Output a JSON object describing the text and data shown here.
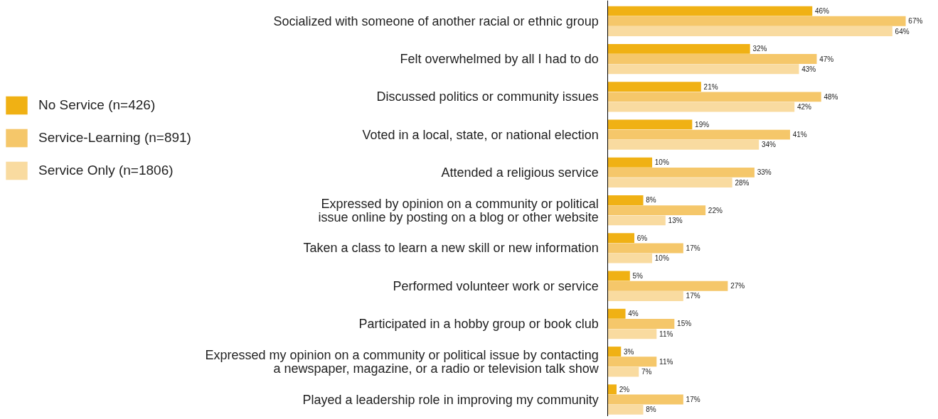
{
  "chart_data": {
    "type": "bar",
    "orientation": "horizontal",
    "categories": [
      "Socialized with someone of another racial or ethnic group",
      "Felt overwhelmed by all I had to do",
      "Discussed politics or community issues",
      "Voted in a local, state, or national election",
      "Attended a religious service",
      "Expressed by opinion on a community or political\nissue online by posting on a blog or other website",
      "Taken a class to learn a new skill or new information",
      "Performed volunteer work or service",
      "Participated in a hobby group or book club",
      "Expressed my opinion on a community or political issue by contacting\na newspaper, magazine, or a radio or television talk show",
      "Played a leadership role in improving my community"
    ],
    "series": [
      {
        "name": "No Service (n=426)",
        "color": "#f0b114",
        "values": [
          46,
          32,
          21,
          19,
          10,
          8,
          6,
          5,
          4,
          3,
          2
        ],
        "value_labels": [
          "46%",
          "32%",
          "21%",
          "19%",
          "10%",
          "8%",
          "6%",
          "5%",
          "4%",
          "3%",
          "2%"
        ]
      },
      {
        "name": "Service-Learning (n=891)",
        "color": "#f5c76a",
        "values": [
          67,
          47,
          48,
          41,
          33,
          22,
          17,
          27,
          15,
          11,
          17
        ],
        "value_labels": [
          "67%",
          "47%",
          "48%",
          "41%",
          "33%",
          "22%",
          "17%",
          "27%",
          "15%",
          "11%",
          "17%"
        ]
      },
      {
        "name": "Service Only (n=1806)",
        "color": "#f9dba0",
        "values": [
          64,
          43,
          42,
          34,
          28,
          13,
          10,
          17,
          11,
          7,
          8
        ],
        "value_labels": [
          "64%",
          "43%",
          "42%",
          "34%",
          "28%",
          "13%",
          "10%",
          "17%",
          "11%",
          "7%",
          "8%"
        ]
      }
    ],
    "tick_labels": "y",
    "grid": false,
    "legend": "left"
  }
}
